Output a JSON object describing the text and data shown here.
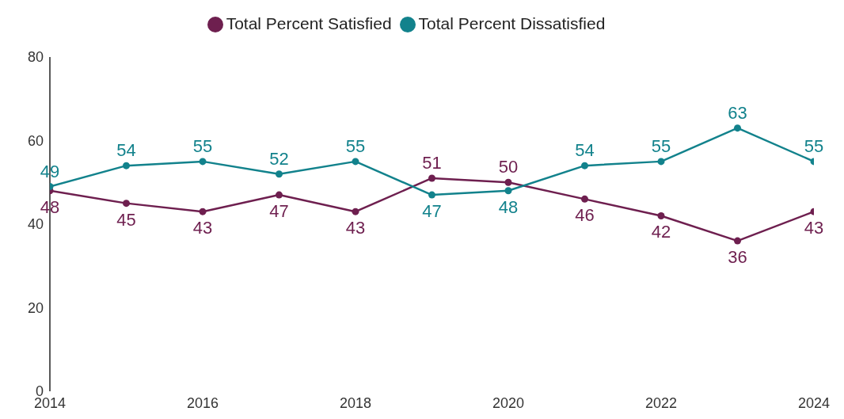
{
  "chart_data": {
    "type": "line",
    "x": [
      2014,
      2015,
      2016,
      2017,
      2018,
      2019,
      2020,
      2021,
      2022,
      2023,
      2024
    ],
    "series": [
      {
        "name": "Total Percent Satisfied",
        "color": "#6e1f4f",
        "values": [
          48,
          45,
          43,
          47,
          43,
          51,
          50,
          46,
          42,
          36,
          43
        ]
      },
      {
        "name": "Total Percent Dissatisfied",
        "color": "#12828c",
        "values": [
          49,
          54,
          55,
          52,
          55,
          47,
          48,
          54,
          55,
          63,
          55
        ]
      }
    ],
    "xlim": [
      2014,
      2024
    ],
    "xticks": [
      2014,
      2016,
      2018,
      2020,
      2022,
      2024
    ],
    "ylim": [
      0,
      80
    ],
    "yticks": [
      0,
      20,
      40,
      60,
      80
    ],
    "grid": false,
    "legend": "top",
    "marker": "circle",
    "line_style": "solid",
    "data_labels": true
  }
}
